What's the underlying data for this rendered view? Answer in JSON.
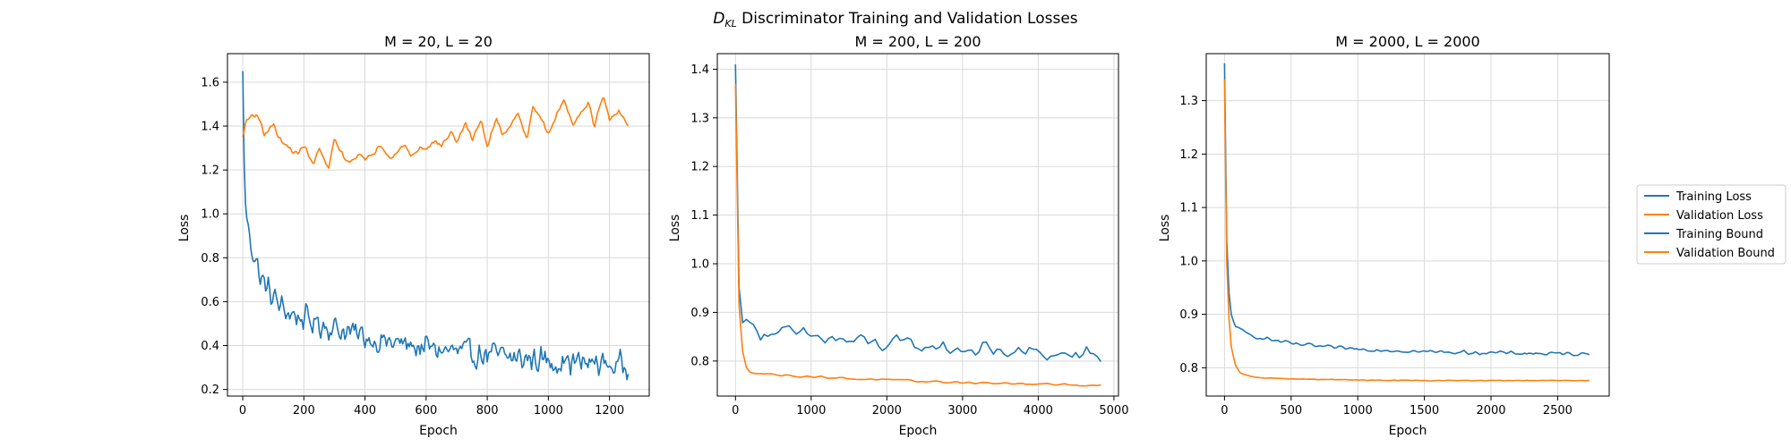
{
  "figure": {
    "suptitle_main": "D",
    "suptitle_sub": "KL",
    "suptitle_rest": " Discriminator Training and Validation Losses"
  },
  "colors": {
    "training": "#1f77b4",
    "validation": "#ff7f0e",
    "grid": "#d9d9d9",
    "axes": "#000000"
  },
  "legend": {
    "placement": "right",
    "entries": [
      {
        "label": "Training Loss",
        "color": "#1f77b4"
      },
      {
        "label": "Validation Loss",
        "color": "#ff7f0e"
      },
      {
        "label": "Training Bound",
        "color": "#1f77b4"
      },
      {
        "label": "Validation Bound",
        "color": "#ff7f0e"
      }
    ]
  },
  "chart_data": [
    {
      "type": "line",
      "title": "M = 20, L = 20",
      "xlabel": "Epoch",
      "ylabel": "Loss",
      "xlim": [
        -50,
        1330
      ],
      "ylim": [
        0.17,
        1.73
      ],
      "xticks": [
        0,
        200,
        400,
        600,
        800,
        1000,
        1200
      ],
      "yticks": [
        0.2,
        0.4,
        0.6,
        0.8,
        1.0,
        1.2,
        1.4,
        1.6
      ],
      "ytick_decimals": 1,
      "grid": true,
      "series": [
        {
          "name": "Training Loss",
          "color": "#1f77b4",
          "x": [
            0,
            5,
            10,
            20,
            30,
            40,
            50,
            60,
            80,
            100,
            120,
            150,
            200,
            250,
            300,
            350,
            400,
            450,
            500,
            550,
            600,
            650,
            700,
            750,
            800,
            850,
            900,
            950,
            1000,
            1050,
            1100,
            1150,
            1180,
            1200,
            1230,
            1250,
            1265
          ],
          "y": [
            1.65,
            1.2,
            1.0,
            0.92,
            0.85,
            0.8,
            0.75,
            0.7,
            0.66,
            0.62,
            0.58,
            0.55,
            0.52,
            0.5,
            0.48,
            0.46,
            0.44,
            0.42,
            0.41,
            0.4,
            0.39,
            0.38,
            0.37,
            0.36,
            0.36,
            0.35,
            0.34,
            0.34,
            0.33,
            0.33,
            0.32,
            0.32,
            0.32,
            0.31,
            0.31,
            0.31,
            0.31
          ],
          "noise": 0.075
        },
        {
          "name": "Validation Loss",
          "color": "#ff7f0e",
          "x": [
            0,
            10,
            30,
            50,
            70,
            100,
            120,
            150,
            180,
            200,
            230,
            250,
            280,
            300,
            330,
            350,
            380,
            400,
            430,
            450,
            480,
            500,
            530,
            550,
            580,
            600,
            630,
            650,
            680,
            700,
            730,
            750,
            780,
            800,
            830,
            850,
            880,
            900,
            930,
            950,
            980,
            1000,
            1030,
            1050,
            1080,
            1100,
            1130,
            1150,
            1180,
            1200,
            1230,
            1250,
            1265
          ],
          "y": [
            1.35,
            1.42,
            1.45,
            1.45,
            1.36,
            1.41,
            1.34,
            1.3,
            1.27,
            1.32,
            1.22,
            1.3,
            1.2,
            1.34,
            1.26,
            1.23,
            1.28,
            1.24,
            1.28,
            1.32,
            1.26,
            1.27,
            1.32,
            1.26,
            1.3,
            1.3,
            1.33,
            1.31,
            1.37,
            1.33,
            1.41,
            1.34,
            1.43,
            1.3,
            1.44,
            1.36,
            1.41,
            1.47,
            1.33,
            1.5,
            1.42,
            1.36,
            1.46,
            1.52,
            1.41,
            1.45,
            1.51,
            1.4,
            1.54,
            1.42,
            1.47,
            1.43,
            1.39
          ],
          "noise": 0.012
        }
      ]
    },
    {
      "type": "line",
      "title": "M = 200, L = 200",
      "xlabel": "Epoch",
      "ylabel": "Loss",
      "xlim": [
        -240,
        5060
      ],
      "ylim": [
        0.728,
        1.432
      ],
      "xticks": [
        0,
        1000,
        2000,
        3000,
        4000,
        5000
      ],
      "yticks": [
        0.8,
        0.9,
        1.0,
        1.1,
        1.2,
        1.3,
        1.4
      ],
      "ytick_decimals": 1,
      "grid": true,
      "series": [
        {
          "name": "Training Loss",
          "color": "#1f77b4",
          "x": [
            0,
            20,
            50,
            100,
            200,
            400,
            700,
            1000,
            1500,
            2000,
            2500,
            3000,
            3500,
            4000,
            4500,
            4830
          ],
          "y": [
            1.41,
            1.05,
            0.95,
            0.89,
            0.87,
            0.86,
            0.855,
            0.85,
            0.84,
            0.835,
            0.83,
            0.825,
            0.82,
            0.815,
            0.81,
            0.81
          ],
          "noise": 0.022
        },
        {
          "name": "Validation Loss",
          "color": "#ff7f0e",
          "x": [
            0,
            20,
            50,
            100,
            150,
            200,
            300,
            500,
            1000,
            1500,
            2000,
            2500,
            3000,
            3500,
            4000,
            4500,
            4830
          ],
          "y": [
            1.37,
            1.05,
            0.9,
            0.81,
            0.785,
            0.778,
            0.775,
            0.772,
            0.768,
            0.764,
            0.761,
            0.758,
            0.756,
            0.754,
            0.752,
            0.751,
            0.75
          ],
          "noise": 0.0025
        }
      ]
    },
    {
      "type": "line",
      "title": "M = 2000, L = 2000",
      "xlabel": "Epoch",
      "ylabel": "Loss",
      "xlim": [
        -137,
        2887
      ],
      "ylim": [
        0.747,
        1.388
      ],
      "xticks": [
        0,
        500,
        1000,
        1500,
        2000,
        2500
      ],
      "yticks": [
        0.8,
        0.9,
        1.0,
        1.1,
        1.2,
        1.3
      ],
      "ytick_decimals": 1,
      "grid": true,
      "series": [
        {
          "name": "Training Loss",
          "color": "#1f77b4",
          "x": [
            0,
            10,
            25,
            50,
            80,
            120,
            200,
            300,
            500,
            800,
            1000,
            1500,
            2000,
            2500,
            2750
          ],
          "y": [
            1.37,
            1.1,
            0.96,
            0.9,
            0.88,
            0.87,
            0.86,
            0.855,
            0.845,
            0.838,
            0.835,
            0.83,
            0.828,
            0.826,
            0.826
          ],
          "noise": 0.004
        },
        {
          "name": "Validation Loss",
          "color": "#ff7f0e",
          "x": [
            0,
            10,
            25,
            50,
            80,
            120,
            200,
            300,
            500,
            1000,
            1500,
            2000,
            2500,
            2750
          ],
          "y": [
            1.34,
            1.06,
            0.92,
            0.84,
            0.805,
            0.79,
            0.783,
            0.781,
            0.779,
            0.777,
            0.776,
            0.776,
            0.776,
            0.776
          ],
          "noise": 0.0008
        }
      ]
    }
  ]
}
